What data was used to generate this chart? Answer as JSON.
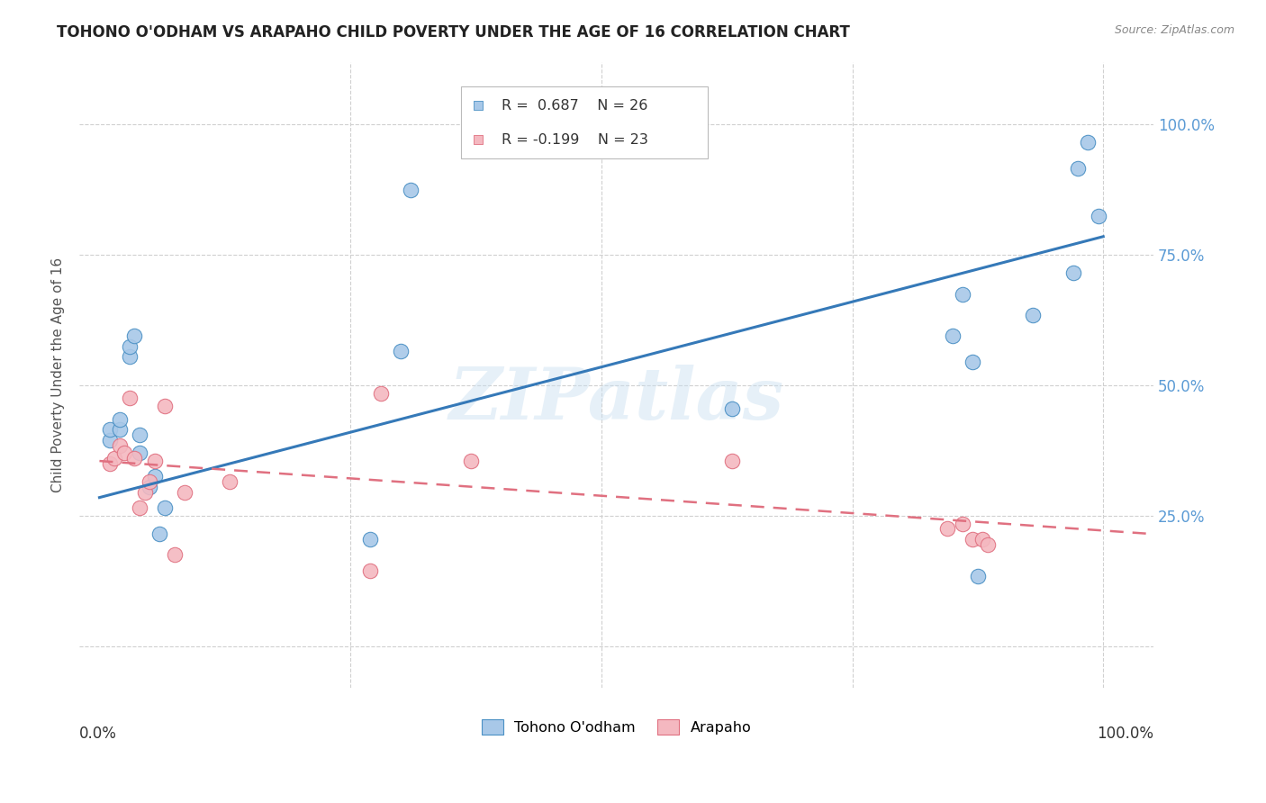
{
  "title": "TOHONO O'ODHAM VS ARAPAHO CHILD POVERTY UNDER THE AGE OF 16 CORRELATION CHART",
  "source": "Source: ZipAtlas.com",
  "ylabel": "Child Poverty Under the Age of 16",
  "watermark": "ZIPatlas",
  "blue_R": 0.687,
  "blue_N": 26,
  "pink_R": -0.199,
  "pink_N": 23,
  "legend_blue": "Tohono O'odham",
  "legend_pink": "Arapaho",
  "xlim": [
    -0.02,
    1.05
  ],
  "ylim": [
    -0.08,
    1.12
  ],
  "ytick_positions": [
    0.0,
    0.25,
    0.5,
    0.75,
    1.0
  ],
  "ytick_labels": [
    "",
    "25.0%",
    "50.0%",
    "75.0%",
    "100.0%"
  ],
  "blue_scatter_x": [
    0.01,
    0.01,
    0.02,
    0.02,
    0.03,
    0.03,
    0.035,
    0.04,
    0.04,
    0.05,
    0.055,
    0.06,
    0.065,
    0.27,
    0.3,
    0.31,
    0.63,
    0.85,
    0.86,
    0.87,
    0.875,
    0.93,
    0.97,
    0.975,
    0.985,
    0.995
  ],
  "blue_scatter_y": [
    0.395,
    0.415,
    0.415,
    0.435,
    0.555,
    0.575,
    0.595,
    0.37,
    0.405,
    0.305,
    0.325,
    0.215,
    0.265,
    0.205,
    0.565,
    0.875,
    0.455,
    0.595,
    0.675,
    0.545,
    0.135,
    0.635,
    0.715,
    0.915,
    0.965,
    0.825
  ],
  "pink_scatter_x": [
    0.01,
    0.015,
    0.02,
    0.025,
    0.03,
    0.035,
    0.04,
    0.045,
    0.05,
    0.055,
    0.065,
    0.075,
    0.085,
    0.13,
    0.27,
    0.28,
    0.37,
    0.63,
    0.845,
    0.86,
    0.87,
    0.88,
    0.885
  ],
  "pink_scatter_y": [
    0.35,
    0.36,
    0.385,
    0.37,
    0.475,
    0.36,
    0.265,
    0.295,
    0.315,
    0.355,
    0.46,
    0.175,
    0.295,
    0.315,
    0.145,
    0.485,
    0.355,
    0.355,
    0.225,
    0.235,
    0.205,
    0.205,
    0.195
  ],
  "blue_line_x": [
    0.0,
    1.0
  ],
  "blue_line_y": [
    0.285,
    0.785
  ],
  "pink_line_x": [
    0.0,
    1.05
  ],
  "pink_line_y": [
    0.355,
    0.215
  ],
  "blue_color": "#a8c8e8",
  "blue_edge_color": "#4a90c4",
  "blue_line_color": "#3579b8",
  "pink_color": "#f4b8c0",
  "pink_edge_color": "#e07080",
  "pink_line_color": "#e07080",
  "marker_size": 140,
  "background_color": "#ffffff",
  "grid_color": "#d0d0d0"
}
